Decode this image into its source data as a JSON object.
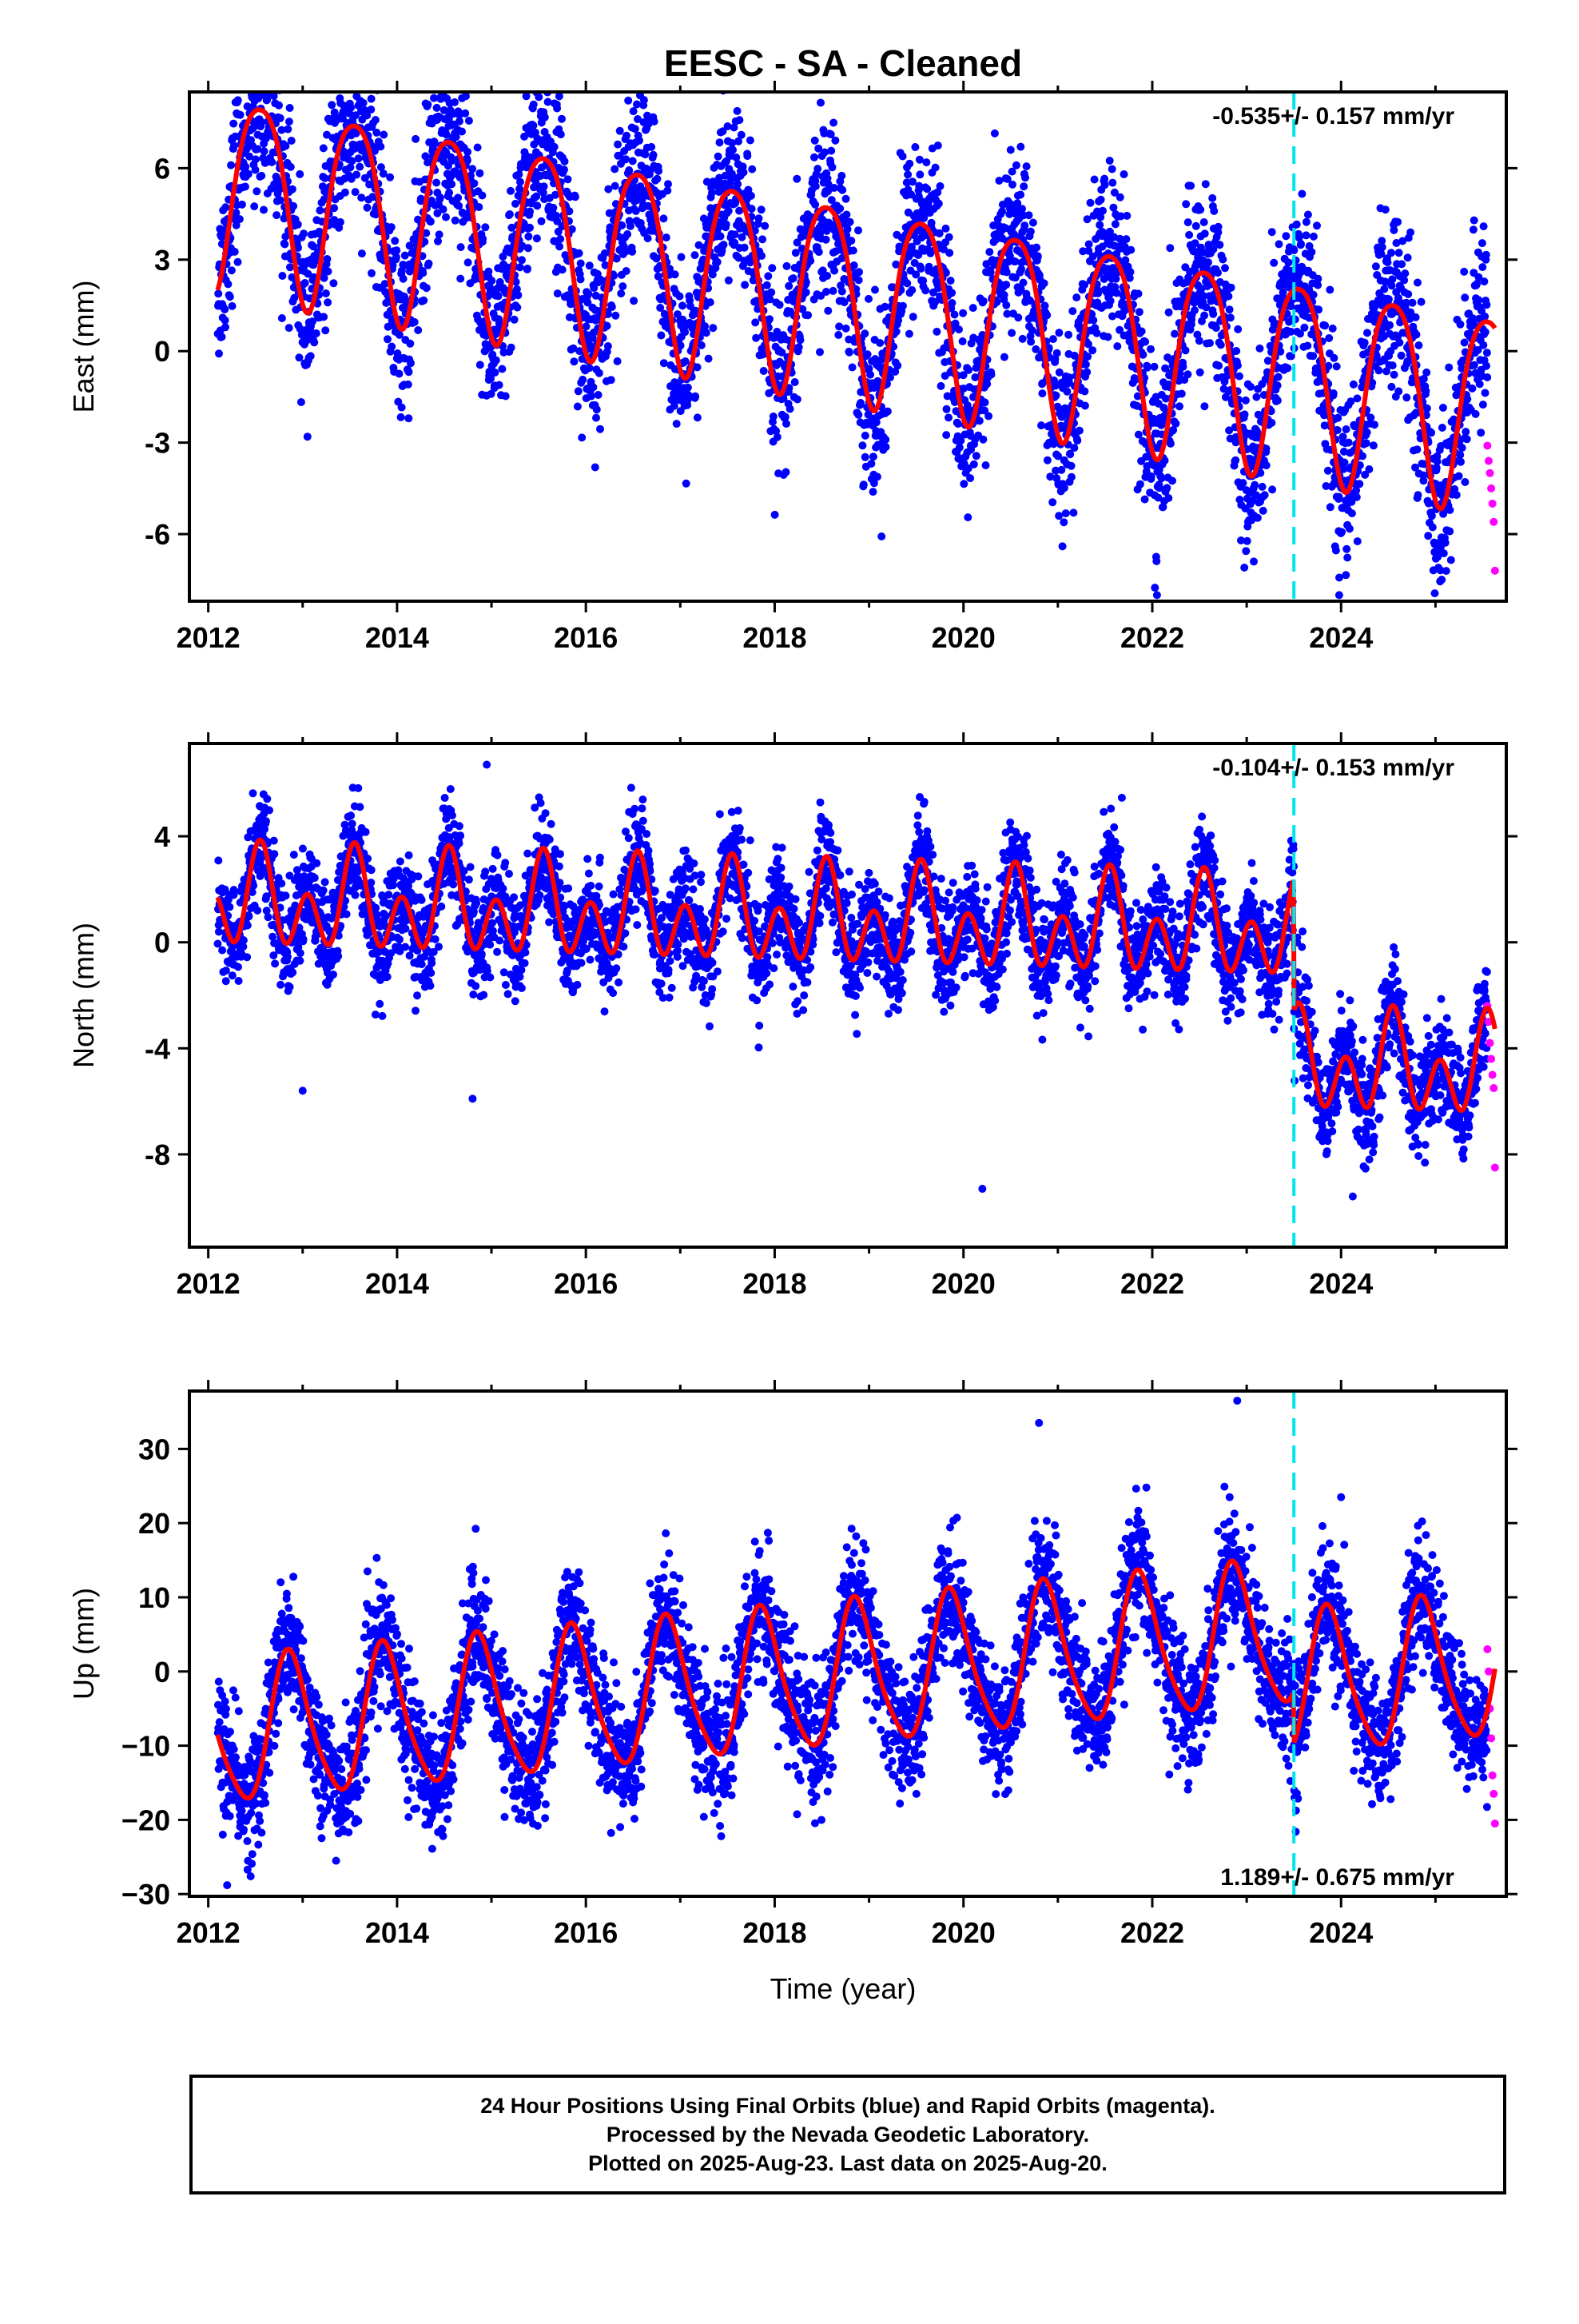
{
  "title": "EESC  - SA - Cleaned",
  "xlabel": "Time (year)",
  "footer": {
    "line1": "24 Hour Positions Using Final Orbits (blue) and Rapid Orbits (magenta).",
    "line2": "Processed by the Nevada Geodetic Laboratory.",
    "line3": "Plotted on 2025-Aug-23. Last data on 2025-Aug-20."
  },
  "colors": {
    "final_orbits": "#0000ff",
    "rapid_orbits": "#ff00ff",
    "model_fit": "#ff0000",
    "step_marker": "#00e5ee"
  },
  "chart_data": [
    {
      "type": "scatter",
      "component": "east",
      "ylabel": "East (mm)",
      "rate_label": "-0.535+/- 0.157 mm/yr",
      "xlim": [
        2011.8,
        2025.75
      ],
      "ylim": [
        -8.2,
        8.5
      ],
      "x_ticks": [
        2012,
        2014,
        2016,
        2018,
        2020,
        2022,
        2024
      ],
      "x_tick_labels": [
        "2012",
        "2014",
        "2016",
        "2018",
        "2020",
        "2022",
        "2024"
      ],
      "y_ticks": [
        6,
        3,
        0,
        -3,
        -6
      ],
      "y_tick_labels": [
        "6",
        "3",
        "0",
        "-3",
        "-6"
      ],
      "step_marker_year": 2023.5,
      "data_start": 2012.1,
      "data_end": 2025.63,
      "model": {
        "offset": 2.3,
        "trend_per_year": -0.535,
        "annual_amp": 3.2,
        "annual_phase_year": 0.55,
        "semi_amp": 0.5,
        "semi_phase_year": 0.3,
        "step": 0
      },
      "scatter_sd": 1.4,
      "rapid_points": {
        "x_start": 2025.55,
        "x_end": 2025.63,
        "y_values": [
          -3.1,
          -3.6,
          -4.0,
          -4.5,
          -5.0,
          -5.6,
          -7.2
        ]
      },
      "outliers": [
        [
          2020.5,
          6.6
        ],
        [
          2021.7,
          5.8
        ],
        [
          2022.05,
          -8.0
        ],
        [
          2023.98,
          -8.0
        ]
      ]
    },
    {
      "type": "scatter",
      "component": "north",
      "ylabel": "North (mm)",
      "rate_label": "-0.104+/- 0.153 mm/yr",
      "xlim": [
        2011.8,
        2025.75
      ],
      "ylim": [
        -11.5,
        7.5
      ],
      "x_ticks": [
        2012,
        2014,
        2016,
        2018,
        2020,
        2022,
        2024
      ],
      "x_tick_labels": [
        "2012",
        "2014",
        "2016",
        "2018",
        "2020",
        "2022",
        "2024"
      ],
      "y_ticks": [
        4,
        0,
        -4,
        -8
      ],
      "y_tick_labels": [
        "4",
        "0",
        "-4",
        "-8"
      ],
      "step_marker_year": 2023.5,
      "data_start": 2012.1,
      "data_end": 2025.63,
      "model": {
        "offset": 0.9,
        "trend_per_year": -0.104,
        "annual_amp": 1.0,
        "annual_phase_year": 0.55,
        "semi_amp": 1.4,
        "semi_phase_year": 0.05,
        "step": -5.0
      },
      "scatter_sd": 1.0,
      "rapid_points": {
        "x_start": 2025.55,
        "x_end": 2025.63,
        "y_values": [
          -2.4,
          -3.0,
          -3.8,
          -4.4,
          -5.0,
          -5.5,
          -8.5
        ]
      },
      "outliers": [
        [
          2014.95,
          6.7
        ],
        [
          2020.2,
          -9.3
        ],
        [
          2013.0,
          -5.6
        ],
        [
          2014.8,
          -5.9
        ]
      ]
    },
    {
      "type": "scatter",
      "component": "up",
      "ylabel": "Up (mm)",
      "rate_label": "1.189+/- 0.675 mm/yr",
      "xlim": [
        2011.8,
        2025.75
      ],
      "ylim": [
        -30.3,
        37.8
      ],
      "x_ticks": [
        2012,
        2014,
        2016,
        2018,
        2020,
        2022,
        2024
      ],
      "x_tick_labels": [
        "2012",
        "2014",
        "2016",
        "2018",
        "2020",
        "2022",
        "2024"
      ],
      "y_ticks": [
        30,
        20,
        10,
        0,
        -10,
        -20,
        -30
      ],
      "y_tick_labels": [
        "30",
        "20",
        "10",
        "0",
        "−10",
        "−20",
        "−30"
      ],
      "step_marker_year": 2023.5,
      "data_start": 2012.1,
      "data_end": 2025.63,
      "model": {
        "offset": -1.5,
        "trend_per_year": 1.189,
        "annual_amp": 9.5,
        "annual_phase_year": 0.87,
        "semi_amp": 1.5,
        "semi_phase_year": 0.3,
        "step": -7.0
      },
      "scatter_sd": 4.2,
      "rapid_points": {
        "x_start": 2025.55,
        "x_end": 2025.63,
        "y_values": [
          3.0,
          0.0,
          -5.0,
          -9.0,
          -14.0,
          -16.5,
          -20.5
        ]
      },
      "outliers": [
        [
          2022.9,
          36.5
        ],
        [
          2020.8,
          33.5
        ],
        [
          2012.2,
          -28.8
        ],
        [
          2024.0,
          23.5
        ]
      ]
    }
  ]
}
